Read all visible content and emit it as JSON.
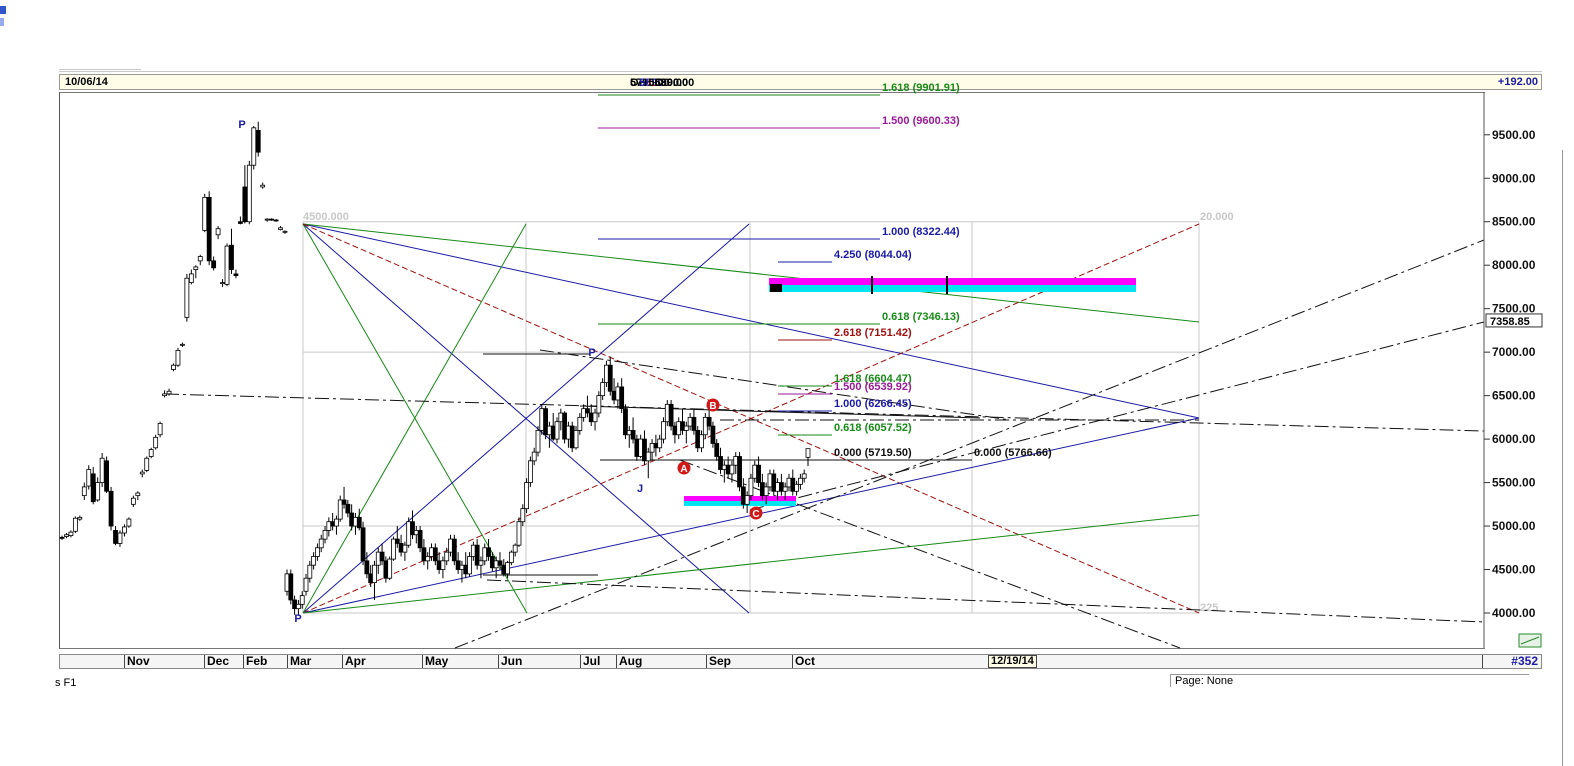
{
  "header": {
    "date": "10/06/14",
    "ohlc": {
      "o_label": "O:",
      "o": "5790.00",
      "h_label": "H:",
      "h": "5890.00",
      "l_label": "L:",
      "l": "5690.00",
      "c_label": "C:",
      "c": "5890.00"
    },
    "change": "+192.00"
  },
  "x_axis": {
    "months": [
      "Nov",
      "Dec",
      "Feb",
      "Mar",
      "Apr",
      "May",
      "Jun",
      "Jul",
      "Aug",
      "Sep",
      "Oct"
    ],
    "cursor_date": "12/19/14",
    "bar_count": "#352"
  },
  "status": {
    "left": "s F1",
    "page": "Page: None"
  },
  "price_axis": {
    "ticks": [
      "9500.00",
      "9000.00",
      "8500.00",
      "8000.00",
      "7500.00",
      "7000.00",
      "6500.00",
      "6000.00",
      "5500.00",
      "5000.00",
      "4500.00",
      "4000.00"
    ],
    "last_price": "7358.85"
  },
  "colors": {
    "background": "#ffffff",
    "header_bg": "#fffde8",
    "blue": "#1a1aa6",
    "red": "#a01010",
    "green": "#178a17",
    "purple": "#9a1a9a",
    "magenta": "#ff00ff",
    "cyan": "#00e5ee",
    "grid": "#c8c8c8"
  },
  "chart_data": {
    "type": "candlestick",
    "ylim": [
      3600,
      10000
    ],
    "x": "bar index, Nov 2013 to Oct 2014 (daily bars, gap Jan)",
    "pivot_labels": [
      {
        "text": "P",
        "price": 9750
      },
      {
        "text": "P",
        "price": 3970
      },
      {
        "text": "P",
        "price": 6950
      },
      {
        "text": "J",
        "price": 5480
      }
    ],
    "abcd_labels": [
      {
        "text": "A",
        "price": 5810
      },
      {
        "text": "B",
        "price": 6400
      },
      {
        "text": "C",
        "price": 5140
      }
    ],
    "gann_box": {
      "top_left_label": "4500.000",
      "top_right_label": "20.000",
      "bottom_right_label": "225"
    },
    "fib_levels": [
      {
        "label": "1.618 (9901.91)",
        "value": 9901.91,
        "color": "green"
      },
      {
        "label": "1.500 (9600.33)",
        "value": 9600.33,
        "color": "purple"
      },
      {
        "label": "1.000 (8322.44)",
        "value": 8322.44,
        "color": "blue"
      },
      {
        "label": "4.250 (8044.04)",
        "value": 8044.04,
        "color": "blue"
      },
      {
        "label": "0.618 (7346.13)",
        "value": 7346.13,
        "color": "green"
      },
      {
        "label": "2.618 (7151.42)",
        "value": 7151.42,
        "color": "red"
      },
      {
        "label": "1.618 (6604.47)",
        "value": 6604.47,
        "color": "green"
      },
      {
        "label": "1.500 (6539.92)",
        "value": 6539.92,
        "color": "purple"
      },
      {
        "label": "1.000 (6266.45)",
        "value": 6266.45,
        "color": "blue"
      },
      {
        "label": "0.618 (6057.52)",
        "value": 6057.52,
        "color": "green"
      },
      {
        "label": "0.000 (5719.50)",
        "value": 5719.5,
        "color": "black"
      },
      {
        "label": "0.000 (5766.66)",
        "value": 5766.66,
        "color": "black"
      }
    ],
    "candles": [
      [
        4870,
        4890,
        4840,
        4860
      ],
      [
        4880,
        4920,
        4860,
        4900
      ],
      [
        4890,
        4950,
        4870,
        4930
      ],
      [
        4940,
        5110,
        4920,
        5090
      ],
      [
        5080,
        5120,
        5060,
        5100
      ],
      [
        5350,
        5500,
        5300,
        5450
      ],
      [
        5460,
        5700,
        5420,
        5650
      ],
      [
        5600,
        5680,
        5250,
        5280
      ],
      [
        5300,
        5560,
        5280,
        5500
      ],
      [
        5500,
        5840,
        5450,
        5780
      ],
      [
        5750,
        5800,
        5380,
        5400
      ],
      [
        5400,
        5450,
        4950,
        5000
      ],
      [
        4950,
        5000,
        4780,
        4800
      ],
      [
        4800,
        4950,
        4760,
        4920
      ],
      [
        4920,
        5020,
        4880,
        4990
      ],
      [
        5000,
        5100,
        4980,
        5080
      ],
      [
        5250,
        5350,
        5220,
        5320
      ],
      [
        5350,
        5400,
        5300,
        5380
      ],
      [
        5600,
        5650,
        5560,
        5620
      ],
      [
        5640,
        5800,
        5620,
        5780
      ],
      [
        5800,
        5900,
        5780,
        5880
      ],
      [
        5900,
        6050,
        5880,
        6020
      ],
      [
        6050,
        6200,
        6020,
        6180
      ],
      [
        6500,
        6560,
        6480,
        6520
      ],
      [
        6520,
        6580,
        6500,
        6550
      ],
      [
        6800,
        6870,
        6780,
        6850
      ],
      [
        6850,
        7050,
        6830,
        7020
      ],
      [
        7080,
        7110,
        7060,
        7090
      ],
      [
        7400,
        7900,
        7350,
        7850
      ],
      [
        7800,
        7950,
        7780,
        7900
      ],
      [
        7950,
        8000,
        7850,
        7980
      ],
      [
        8050,
        8120,
        8000,
        8100
      ],
      [
        8400,
        8820,
        8380,
        8780
      ],
      [
        8780,
        8850,
        8000,
        8050
      ],
      [
        8050,
        8100,
        7940,
        7970
      ],
      [
        8350,
        8450,
        8300,
        8420
      ],
      [
        7800,
        7840,
        7750,
        7800
      ],
      [
        7780,
        8250,
        7760,
        8220
      ],
      [
        8230,
        8420,
        7900,
        7950
      ],
      [
        7900,
        7950,
        7850,
        7880
      ],
      [
        8500,
        8560,
        8470,
        8480
      ],
      [
        8900,
        9150,
        8480,
        8500
      ],
      [
        8500,
        9200,
        8470,
        9150
      ],
      [
        9150,
        9600,
        9100,
        9580
      ],
      [
        9550,
        9650,
        9250,
        9300
      ],
      [
        8900,
        8950,
        8880,
        8920
      ],
      [
        8520,
        8540,
        8500,
        8530
      ],
      [
        8530,
        8540,
        8510,
        8525
      ],
      [
        8520,
        8530,
        8500,
        8510
      ],
      [
        8410,
        8450,
        8400,
        8430
      ],
      [
        8380,
        8400,
        8360,
        8390
      ],
      [
        4250,
        4500,
        4200,
        4450
      ],
      [
        4450,
        4500,
        4100,
        4150
      ],
      [
        4150,
        4200,
        3980,
        4050
      ],
      [
        4050,
        4150,
        3970,
        4100
      ],
      [
        4100,
        4250,
        4050,
        4200
      ],
      [
        4250,
        4450,
        4200,
        4400
      ],
      [
        4400,
        4600,
        4350,
        4550
      ],
      [
        4550,
        4700,
        4500,
        4650
      ],
      [
        4650,
        4800,
        4600,
        4750
      ],
      [
        4750,
        4900,
        4700,
        4850
      ],
      [
        4850,
        5000,
        4800,
        4950
      ],
      [
        4950,
        5100,
        4880,
        5050
      ],
      [
        5050,
        5150,
        4950,
        5000
      ],
      [
        5000,
        5120,
        4900,
        5080
      ],
      [
        5080,
        5350,
        5050,
        5300
      ],
      [
        5300,
        5450,
        5200,
        5250
      ],
      [
        5250,
        5300,
        5100,
        5150
      ],
      [
        5150,
        5250,
        4950,
        5000
      ],
      [
        5000,
        5150,
        4900,
        5100
      ],
      [
        5100,
        5200,
        4950,
        4980
      ],
      [
        4980,
        5050,
        4550,
        4600
      ],
      [
        4600,
        4700,
        4400,
        4450
      ],
      [
        4450,
        4550,
        4300,
        4350
      ],
      [
        4350,
        4600,
        4150,
        4550
      ],
      [
        4550,
        4750,
        4450,
        4700
      ],
      [
        4700,
        4800,
        4550,
        4600
      ],
      [
        4600,
        4650,
        4350,
        4400
      ],
      [
        4400,
        4650,
        4380,
        4620
      ],
      [
        4620,
        4880,
        4600,
        4850
      ],
      [
        4850,
        5000,
        4750,
        4800
      ],
      [
        4800,
        4900,
        4650,
        4700
      ],
      [
        4700,
        4820,
        4600,
        4780
      ],
      [
        4780,
        5100,
        4750,
        5050
      ],
      [
        5050,
        5180,
        4850,
        4900
      ],
      [
        4900,
        5000,
        4800,
        4950
      ],
      [
        4950,
        5000,
        4700,
        4750
      ],
      [
        4750,
        4850,
        4550,
        4600
      ],
      [
        4600,
        4700,
        4500,
        4650
      ],
      [
        4650,
        4800,
        4600,
        4750
      ],
      [
        4750,
        4800,
        4550,
        4600
      ],
      [
        4600,
        4700,
        4450,
        4500
      ],
      [
        4500,
        4650,
        4400,
        4600
      ],
      [
        4600,
        4750,
        4550,
        4700
      ],
      [
        4700,
        4900,
        4650,
        4850
      ],
      [
        4850,
        4900,
        4550,
        4600
      ],
      [
        4600,
        4700,
        4450,
        4500
      ],
      [
        4500,
        4600,
        4350,
        4550
      ],
      [
        4550,
        4700,
        4400,
        4450
      ],
      [
        4450,
        4700,
        4420,
        4650
      ],
      [
        4650,
        4820,
        4600,
        4780
      ],
      [
        4780,
        4850,
        4500,
        4550
      ],
      [
        4550,
        4650,
        4400,
        4600
      ],
      [
        4600,
        4800,
        4550,
        4750
      ],
      [
        4750,
        4850,
        4600,
        4650
      ],
      [
        4650,
        4700,
        4480,
        4520
      ],
      [
        4520,
        4650,
        4400,
        4600
      ],
      [
        4600,
        4700,
        4500,
        4550
      ],
      [
        4550,
        4620,
        4420,
        4450
      ],
      [
        4450,
        4600,
        4400,
        4580
      ],
      [
        4580,
        4720,
        4550,
        4700
      ],
      [
        4700,
        4800,
        4650,
        4780
      ],
      [
        4780,
        5100,
        4760,
        5050
      ],
      [
        5050,
        5250,
        5000,
        5200
      ],
      [
        5200,
        5550,
        5150,
        5500
      ],
      [
        5500,
        5800,
        5450,
        5750
      ],
      [
        5750,
        5900,
        5700,
        5850
      ],
      [
        5850,
        6150,
        5800,
        6100
      ],
      [
        6100,
        6400,
        6050,
        6350
      ],
      [
        6350,
        6380,
        6000,
        6050
      ],
      [
        6050,
        6200,
        5900,
        6150
      ],
      [
        6150,
        6300,
        5980,
        6000
      ],
      [
        6000,
        6250,
        5950,
        6200
      ],
      [
        6200,
        6350,
        6100,
        6300
      ],
      [
        6300,
        6320,
        5950,
        6000
      ],
      [
        6000,
        6200,
        5900,
        6150
      ],
      [
        6150,
        6200,
        5850,
        5900
      ],
      [
        5900,
        6150,
        5880,
        6100
      ],
      [
        6100,
        6300,
        6050,
        6250
      ],
      [
        6250,
        6400,
        6200,
        6350
      ],
      [
        6350,
        6500,
        6250,
        6300
      ],
      [
        6300,
        6400,
        6150,
        6200
      ],
      [
        6200,
        6350,
        6100,
        6300
      ],
      [
        6300,
        6550,
        6250,
        6500
      ],
      [
        6500,
        6700,
        6450,
        6650
      ],
      [
        6650,
        6900,
        6600,
        6850
      ],
      [
        6850,
        6950,
        6500,
        6550
      ],
      [
        6550,
        6700,
        6400,
        6450
      ],
      [
        6450,
        6650,
        6350,
        6600
      ],
      [
        6600,
        6700,
        6300,
        6350
      ],
      [
        6350,
        6400,
        6000,
        6050
      ],
      [
        6050,
        6150,
        5900,
        6100
      ],
      [
        6100,
        6250,
        5950,
        6000
      ],
      [
        6000,
        6050,
        5750,
        5800
      ],
      [
        5800,
        6050,
        5780,
        6000
      ],
      [
        6000,
        6100,
        5700,
        5750
      ],
      [
        5750,
        5900,
        5550,
        5850
      ],
      [
        5850,
        6000,
        5750,
        5950
      ],
      [
        5950,
        6050,
        5800,
        5900
      ],
      [
        5900,
        6050,
        5850,
        6000
      ],
      [
        6000,
        6250,
        5950,
        6200
      ],
      [
        6200,
        6450,
        6150,
        6400
      ],
      [
        6400,
        6450,
        6100,
        6150
      ],
      [
        6150,
        6200,
        5950,
        6050
      ],
      [
        6050,
        6250,
        6000,
        6200
      ],
      [
        6200,
        6350,
        6050,
        6100
      ],
      [
        6100,
        6200,
        5950,
        6150
      ],
      [
        6150,
        6300,
        6100,
        6250
      ],
      [
        6250,
        6350,
        6050,
        6100
      ],
      [
        6100,
        6150,
        5850,
        5900
      ],
      [
        5900,
        6100,
        5850,
        6050
      ],
      [
        6050,
        6300,
        6000,
        6250
      ],
      [
        6250,
        6350,
        6100,
        6150
      ],
      [
        6150,
        6200,
        5900,
        5950
      ],
      [
        5950,
        6000,
        5750,
        5800
      ],
      [
        5800,
        5900,
        5600,
        5650
      ],
      [
        5650,
        5750,
        5500,
        5700
      ],
      [
        5700,
        5800,
        5550,
        5600
      ],
      [
        5600,
        5750,
        5500,
        5700
      ],
      [
        5700,
        5850,
        5600,
        5800
      ],
      [
        5800,
        5850,
        5400,
        5450
      ],
      [
        5450,
        5550,
        5200,
        5250
      ],
      [
        5250,
        5400,
        5150,
        5350
      ],
      [
        5350,
        5600,
        5300,
        5550
      ],
      [
        5550,
        5750,
        5500,
        5700
      ],
      [
        5700,
        5800,
        5450,
        5500
      ],
      [
        5500,
        5600,
        5300,
        5350
      ],
      [
        5350,
        5500,
        5250,
        5450
      ],
      [
        5450,
        5650,
        5400,
        5600
      ],
      [
        5600,
        5650,
        5350,
        5400
      ],
      [
        5400,
        5550,
        5300,
        5500
      ],
      [
        5500,
        5600,
        5350,
        5400
      ],
      [
        5400,
        5500,
        5300,
        5450
      ],
      [
        5450,
        5600,
        5400,
        5550
      ],
      [
        5550,
        5650,
        5350,
        5400
      ],
      [
        5400,
        5520,
        5350,
        5480
      ],
      [
        5480,
        5600,
        5420,
        5550
      ],
      [
        5550,
        5650,
        5500,
        5600
      ],
      [
        5790,
        5890,
        5690,
        5890
      ]
    ]
  }
}
